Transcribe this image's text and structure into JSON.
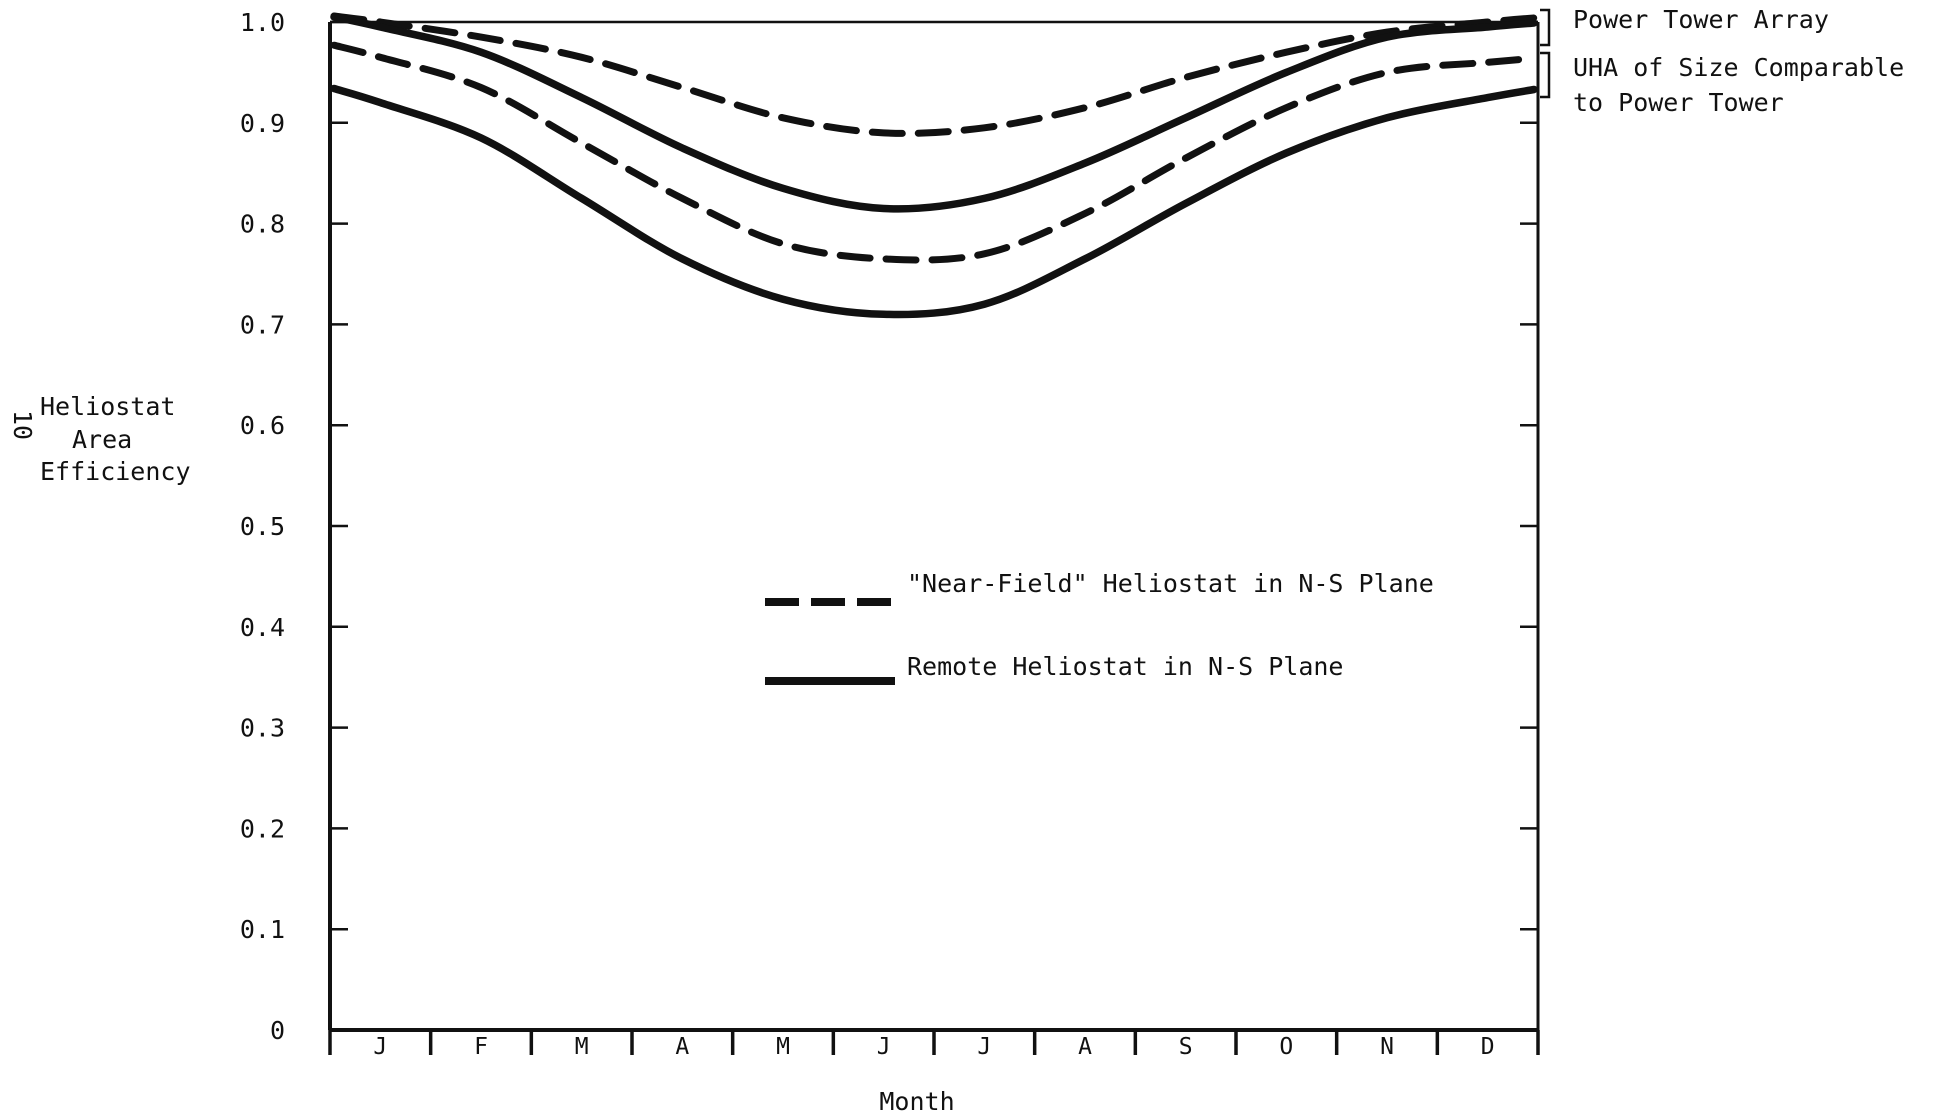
{
  "chart_data": {
    "type": "line",
    "title": "",
    "xlabel": "Month",
    "ylabel_lines": [
      "Heliostat",
      "Area",
      "Efficiency"
    ],
    "ylabel_prefix": "10",
    "categories": [
      "J",
      "F",
      "M",
      "A",
      "M",
      "J",
      "J",
      "A",
      "S",
      "O",
      "N",
      "D"
    ],
    "ylim": [
      0,
      1.0
    ],
    "yticks": [
      0,
      0.1,
      0.2,
      0.3,
      0.4,
      0.5,
      0.6,
      0.7,
      0.8,
      0.9,
      1.0
    ],
    "ytick_labels": [
      "0",
      "0.1",
      "0.2",
      "0.3",
      "0.4",
      "0.5",
      "0.6",
      "0.7",
      "0.8",
      "0.9",
      "1.0"
    ],
    "grid": false,
    "series": [
      {
        "group": "power-tower",
        "style": "dashed",
        "values": [
          1.0,
          0.985,
          0.965,
          0.935,
          0.905,
          0.89,
          0.895,
          0.915,
          0.945,
          0.97,
          0.99,
          1.0
        ]
      },
      {
        "group": "power-tower",
        "style": "solid",
        "values": [
          0.995,
          0.97,
          0.925,
          0.875,
          0.835,
          0.815,
          0.825,
          0.86,
          0.905,
          0.95,
          0.985,
          0.995
        ]
      },
      {
        "group": "uha",
        "style": "dashed",
        "values": [
          0.965,
          0.935,
          0.88,
          0.825,
          0.78,
          0.765,
          0.77,
          0.81,
          0.865,
          0.915,
          0.95,
          0.96
        ]
      },
      {
        "group": "uha",
        "style": "solid",
        "values": [
          0.92,
          0.885,
          0.825,
          0.765,
          0.725,
          0.71,
          0.72,
          0.765,
          0.82,
          0.87,
          0.905,
          0.925
        ]
      }
    ],
    "legend": [
      {
        "style": "dashed",
        "label": "\"Near-Field\" Heliostat in N-S Plane"
      },
      {
        "style": "solid",
        "label": "Remote Heliostat in N-S Plane"
      }
    ],
    "legend_placement": "center",
    "annotations": {
      "power_tower": "Power Tower Array",
      "uha_line1": "UHA of Size Comparable",
      "uha_line2": "to Power Tower"
    }
  }
}
